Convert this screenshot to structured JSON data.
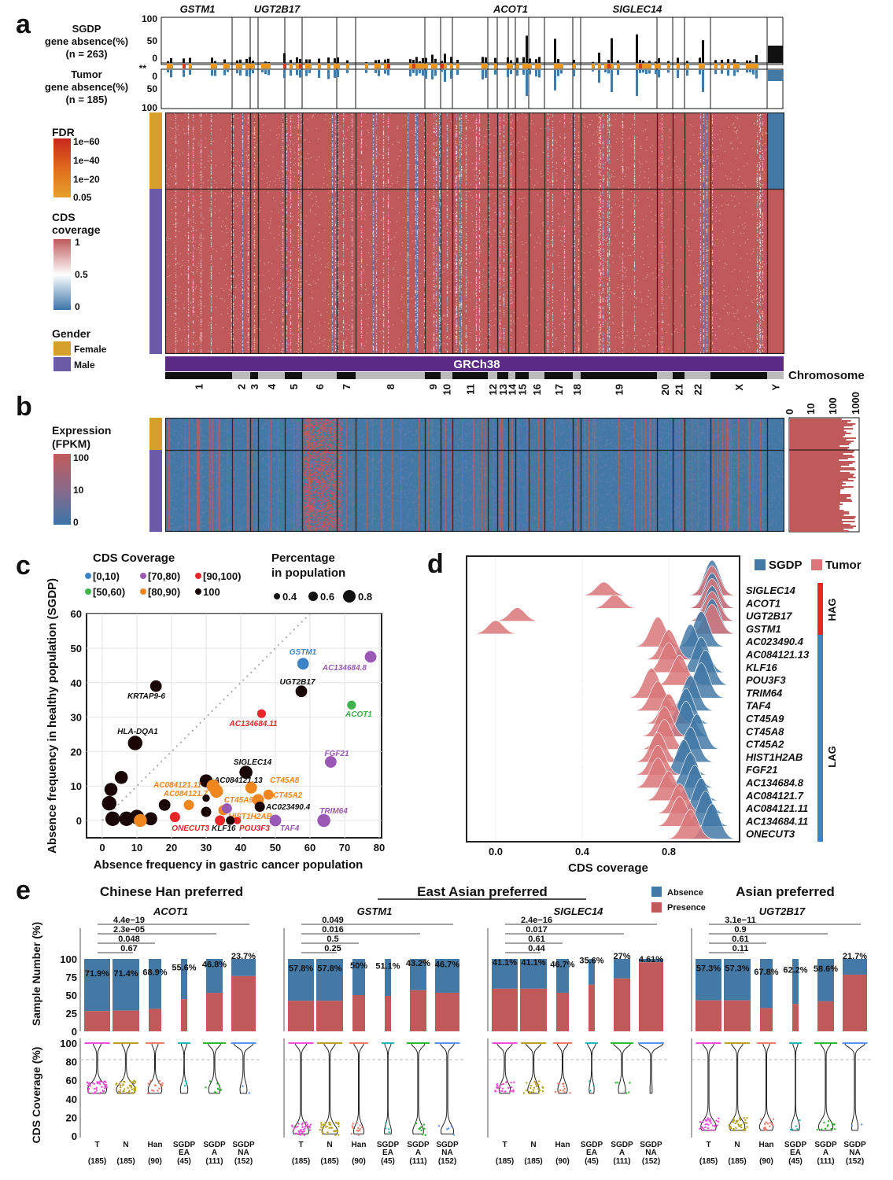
{
  "colors": {
    "heat_high": "#c0595a",
    "heat_low": "#4479a6",
    "female": "#d4a02a",
    "male": "#6b5aa6",
    "grch38": "#5b2a86",
    "sgdp": "#4479a6",
    "tumor": "#d9777a",
    "hag": "#e8262a",
    "lag": "#3d84c6",
    "absence": "#4479a6",
    "presence": "#c0595a"
  },
  "panel_a": {
    "label": "a",
    "sgdp_axis": {
      "title": [
        "SGDP",
        "gene absence(%)",
        "(n = 263)"
      ],
      "ticks": [
        "100",
        "50",
        "0"
      ]
    },
    "tumor_axis": {
      "title": [
        "Tumor",
        "gene absence(%)",
        "(n = 185)"
      ],
      "ticks": [
        "0",
        "50",
        "100"
      ]
    },
    "stars": "**",
    "top_genes": [
      "GSTM1",
      "UGT2B17",
      "ACOT1",
      "SIGLEC14"
    ],
    "legend": {
      "fdr_title": "FDR",
      "fdr_ticks": [
        "1e−60",
        "1e−40",
        "1e−20",
        "0.05"
      ],
      "cds_title": [
        "CDS",
        "coverage"
      ],
      "cds_ticks": [
        "1",
        "0.5",
        "0"
      ],
      "gender_title": "Gender",
      "female": "Female",
      "male": "Male"
    },
    "reference": "GRCh38",
    "chromosome_label": "Chromosome",
    "chromosomes": [
      "1",
      "2",
      "3",
      "4",
      "5",
      "6",
      "7",
      "8",
      "9",
      "10",
      "11",
      "12",
      "13",
      "14",
      "15",
      "16",
      "17",
      "18",
      "19",
      "20",
      "21",
      "22",
      "X",
      "Y"
    ]
  },
  "panel_b": {
    "label": "b",
    "legend_title": [
      "Expression",
      "(FPKM)"
    ],
    "legend_ticks": [
      "100",
      "10",
      "0"
    ],
    "hist_ticks": [
      "0",
      "10",
      "100",
      "1000"
    ]
  },
  "chart_data": [
    {
      "type": "scatter",
      "panel": "c",
      "xlabel": "Absence frequency in gastric cancer population",
      "ylabel": "Absence frequency in healthy population (SGDP)",
      "xlim": [
        0,
        80
      ],
      "ylim": [
        0,
        60
      ],
      "xticks": [
        "0",
        "10",
        "20",
        "30",
        "40",
        "50",
        "60",
        "70",
        "80"
      ],
      "yticks": [
        "0",
        "10",
        "20",
        "30",
        "40",
        "50",
        "60"
      ],
      "grid": true,
      "diagonal": "y=x dotted",
      "legend_color_title": "CDS Coverage",
      "legend_color": [
        {
          "label": "[0,10)",
          "color": "#3d84c6"
        },
        {
          "label": "[70,80)",
          "color": "#9b59b6"
        },
        {
          "label": "[90,100)",
          "color": "#e8262a"
        },
        {
          "label": "[50,60)",
          "color": "#3cb44b"
        },
        {
          "label": "[80,90)",
          "color": "#f0861e"
        },
        {
          "label": "100",
          "color": "#1a0505"
        }
      ],
      "legend_size_title": [
        "Percentage",
        "in population"
      ],
      "legend_size": [
        "0.4",
        "0.6",
        "0.8"
      ],
      "points": [
        {
          "label": "GSTM1",
          "x": 58,
          "y": 45.5,
          "cov": "[0,10)",
          "size": 0.6
        },
        {
          "label": "AC134684.8",
          "x": 77.5,
          "y": 47.5,
          "cov": "[70,80)",
          "size": 0.6
        },
        {
          "label": "UGT2B17",
          "x": 57.5,
          "y": 37.5,
          "cov": "100",
          "size": 0.6
        },
        {
          "label": "KRTAP9-6",
          "x": 15.5,
          "y": 39,
          "cov": "100",
          "size": 0.6
        },
        {
          "label": "ACOT1",
          "x": 72,
          "y": 33.5,
          "cov": "[50,60)",
          "size": 0.4
        },
        {
          "label": "AC134684.11",
          "x": 46,
          "y": 31,
          "cov": "[90,100)",
          "size": 0.4
        },
        {
          "label": "HLA-DQA1",
          "x": 9.5,
          "y": 22.5,
          "cov": "100",
          "size": 0.8
        },
        {
          "label": "FGF21",
          "x": 66,
          "y": 17,
          "cov": "[70,80)",
          "size": 0.6
        },
        {
          "label": "SIGLEC14",
          "x": 41.5,
          "y": 14,
          "cov": "100",
          "size": 0.7
        },
        {
          "label": "AC084121.13",
          "x": 30,
          "y": 11.5,
          "cov": "100",
          "size": 0.7
        },
        {
          "label": "CT45A8",
          "x": 43,
          "y": 9.5,
          "cov": "[80,90)",
          "size": 0.6
        },
        {
          "label": "AC084121.11",
          "x": 32,
          "y": 10,
          "cov": "[80,90)",
          "size": 0.7
        },
        {
          "label": "AC084121.7",
          "x": 33,
          "y": 8.5,
          "cov": "[80,90)",
          "size": 0.7
        },
        {
          "label": "CT45A2",
          "x": 48,
          "y": 7.5,
          "cov": "[80,90)",
          "size": 0.5
        },
        {
          "label": "CT45A9",
          "x": 45,
          "y": 6,
          "cov": "[80,90)",
          "size": 0.6
        },
        {
          "label": "AC023490.4",
          "x": 45.5,
          "y": 4,
          "cov": "100",
          "size": 0.5
        },
        {
          "label": "HIST1H2AB",
          "x": 35,
          "y": 3,
          "cov": "[80,90)",
          "size": 0.5
        },
        {
          "label": "TRIM64",
          "x": 64,
          "y": 0,
          "cov": "[70,80)",
          "size": 0.7
        },
        {
          "label": "TAF4",
          "x": 50,
          "y": 0,
          "cov": "[70,80)",
          "size": 0.6
        },
        {
          "label": "POU3F3",
          "x": 39,
          "y": 0,
          "cov": "[90,100)",
          "size": 0.3
        },
        {
          "label": "KLF16",
          "x": 37,
          "y": 0,
          "cov": "100",
          "size": 0.4
        },
        {
          "label": "ONECUT3",
          "x": 34,
          "y": 0,
          "cov": "[90,100)",
          "size": 0.5
        },
        {
          "label": "",
          "x": 2,
          "y": 5,
          "cov": "100",
          "size": 0.8
        },
        {
          "label": "",
          "x": 2.5,
          "y": 9,
          "cov": "100",
          "size": 0.7
        },
        {
          "label": "",
          "x": 5.5,
          "y": 12.5,
          "cov": "100",
          "size": 0.7
        },
        {
          "label": "",
          "x": 3,
          "y": 0.5,
          "cov": "100",
          "size": 0.8
        },
        {
          "label": "",
          "x": 7,
          "y": 0.5,
          "cov": "100",
          "size": 0.8
        },
        {
          "label": "",
          "x": 10,
          "y": 1,
          "cov": "100",
          "size": 0.8
        },
        {
          "label": "",
          "x": 14,
          "y": 0.5,
          "cov": "100",
          "size": 0.7
        },
        {
          "label": "",
          "x": 11,
          "y": 0,
          "cov": "[80,90)",
          "size": 0.7
        },
        {
          "label": "",
          "x": 18,
          "y": 4.5,
          "cov": "100",
          "size": 0.6
        },
        {
          "label": "",
          "x": 21,
          "y": 1,
          "cov": "[90,100)",
          "size": 0.5
        },
        {
          "label": "",
          "x": 25,
          "y": 4.5,
          "cov": "[80,90)",
          "size": 0.5
        },
        {
          "label": "",
          "x": 30,
          "y": 6.5,
          "cov": "100",
          "size": 0.3
        },
        {
          "label": "",
          "x": 30,
          "y": 2.5,
          "cov": "100",
          "size": 0.5
        },
        {
          "label": "",
          "x": 36,
          "y": 3.5,
          "cov": "[70,80)",
          "size": 0.5
        }
      ]
    },
    {
      "type": "ridgeline",
      "panel": "d",
      "xlabel": "CDS coverage",
      "xticks": [
        "0.0",
        "0.4",
        "0.8"
      ],
      "xlim": [
        -0.1,
        1.2
      ],
      "legend": [
        "SGDP",
        "Tumor"
      ],
      "groups": [
        {
          "label": "HAG",
          "genes": 4
        },
        {
          "label": "LAG",
          "genes": 16
        }
      ],
      "genes": [
        {
          "name": "SIGLEC14",
          "sgdp_peaks": [
            1.0
          ],
          "tumor_peaks": [
            0.5,
            1.0
          ]
        },
        {
          "name": "ACOT1",
          "sgdp_peaks": [
            1.0
          ],
          "tumor_peaks": [
            0.55,
            1.0
          ]
        },
        {
          "name": "UGT2B17",
          "sgdp_peaks": [
            1.0
          ],
          "tumor_peaks": [
            0.1,
            1.0
          ]
        },
        {
          "name": "GSTM1",
          "sgdp_peaks": [
            1.0
          ],
          "tumor_peaks": [
            0.0,
            1.0
          ]
        },
        {
          "name": "AC023490.4",
          "sgdp_peaks": [
            0.95
          ],
          "tumor_peaks": [
            0.75
          ]
        },
        {
          "name": "AC084121.13",
          "sgdp_peaks": [
            0.9
          ],
          "tumor_peaks": [
            0.8
          ]
        },
        {
          "name": "KLF16",
          "sgdp_peaks": [
            0.95
          ],
          "tumor_peaks": [
            0.8
          ]
        },
        {
          "name": "POU3F3",
          "sgdp_peaks": [
            0.97
          ],
          "tumor_peaks": [
            0.85
          ]
        },
        {
          "name": "TRIM64",
          "sgdp_peaks": [
            0.95
          ],
          "tumor_peaks": [
            0.72
          ]
        },
        {
          "name": "TAF4",
          "sgdp_peaks": [
            0.9
          ],
          "tumor_peaks": [
            0.75
          ]
        },
        {
          "name": "CT45A9",
          "sgdp_peaks": [
            0.88
          ],
          "tumor_peaks": [
            0.8
          ]
        },
        {
          "name": "CT45A8",
          "sgdp_peaks": [
            0.88
          ],
          "tumor_peaks": [
            0.78
          ]
        },
        {
          "name": "CT45A2",
          "sgdp_peaks": [
            0.93
          ],
          "tumor_peaks": [
            0.78
          ]
        },
        {
          "name": "HIST1H2AB",
          "sgdp_peaks": [
            0.9
          ],
          "tumor_peaks": [
            0.75
          ]
        },
        {
          "name": "FGF21",
          "sgdp_peaks": [
            0.87
          ],
          "tumor_peaks": [
            0.75
          ]
        },
        {
          "name": "AC134684.8",
          "sgdp_peaks": [
            0.9
          ],
          "tumor_peaks": [
            0.75
          ]
        },
        {
          "name": "AC084121.7",
          "sgdp_peaks": [
            0.92
          ],
          "tumor_peaks": [
            0.8
          ]
        },
        {
          "name": "AC084121.11",
          "sgdp_peaks": [
            0.95
          ],
          "tumor_peaks": [
            0.85
          ]
        },
        {
          "name": "AC134684.11",
          "sgdp_peaks": [
            0.97
          ],
          "tumor_peaks": [
            0.85
          ]
        },
        {
          "name": "ONECUT3",
          "sgdp_peaks": [
            1.0
          ],
          "tumor_peaks": [
            0.9
          ]
        }
      ]
    },
    {
      "type": "bar",
      "panel": "e",
      "stacked": true,
      "ylabel_top": "Sample Number (%)",
      "ylabel_bottom": "CDS Coverage (%)",
      "yticks_top": [
        "0",
        "25",
        "50",
        "75",
        "100"
      ],
      "yticks_bottom": [
        "0",
        "20",
        "40",
        "60",
        "80",
        "100"
      ],
      "legend": [
        "Absence",
        "Presence"
      ],
      "section_titles": [
        "Chinese Han preferred",
        "East Asian preferred",
        "Asian preferred"
      ],
      "categories": [
        [
          "T",
          "(185)"
        ],
        [
          "N",
          "(185)"
        ],
        [
          "Han",
          "(90)"
        ],
        [
          "SGDP EA",
          "(45)"
        ],
        [
          "SGDP A",
          "(111)"
        ],
        [
          "SGDP NA",
          "(152)"
        ]
      ],
      "genes": [
        {
          "name": "ACOT1",
          "absence_pct": [
            71.9,
            71.4,
            68.9,
            55.6,
            46.8,
            23.7
          ],
          "labels": [
            "71.9%",
            "71.4%",
            "68.9%",
            "55.6%",
            "46.8%",
            "23.7%"
          ],
          "pvalues": [
            "0.67",
            "0.048",
            "2.3e−05",
            "4.4e−19"
          ],
          "absent_coverage_level": 50
        },
        {
          "name": "GSTM1",
          "absence_pct": [
            57.8,
            57.8,
            50,
            51.1,
            43.2,
            46.7
          ],
          "labels": [
            "57.8%",
            "57.8%",
            "50%",
            "51.1%",
            "43.2%",
            "46.7%"
          ],
          "pvalues": [
            "0.25",
            "0.5",
            "0.016",
            "0.049"
          ],
          "absent_coverage_level": 5
        },
        {
          "name": "SIGLEC14",
          "absence_pct": [
            41.1,
            41.1,
            46.7,
            35.6,
            27,
            4.61
          ],
          "labels": [
            "41.1%",
            "41.1%",
            "46.7%",
            "35.6%",
            "27%",
            "4.61%"
          ],
          "pvalues": [
            "0.44",
            "0.61",
            "0.017",
            "2.4e−16"
          ],
          "absent_coverage_level": 50
        },
        {
          "name": "UGT2B17",
          "absence_pct": [
            57.3,
            57.3,
            67.8,
            62.2,
            58.6,
            21.7
          ],
          "labels": [
            "57.3%",
            "57.3%",
            "67.8%",
            "62.2%",
            "58.6%",
            "21.7%"
          ],
          "pvalues": [
            "0.11",
            "0.61",
            "0.9",
            "3.1e−11"
          ],
          "absent_coverage_level": 10
        }
      ]
    }
  ]
}
